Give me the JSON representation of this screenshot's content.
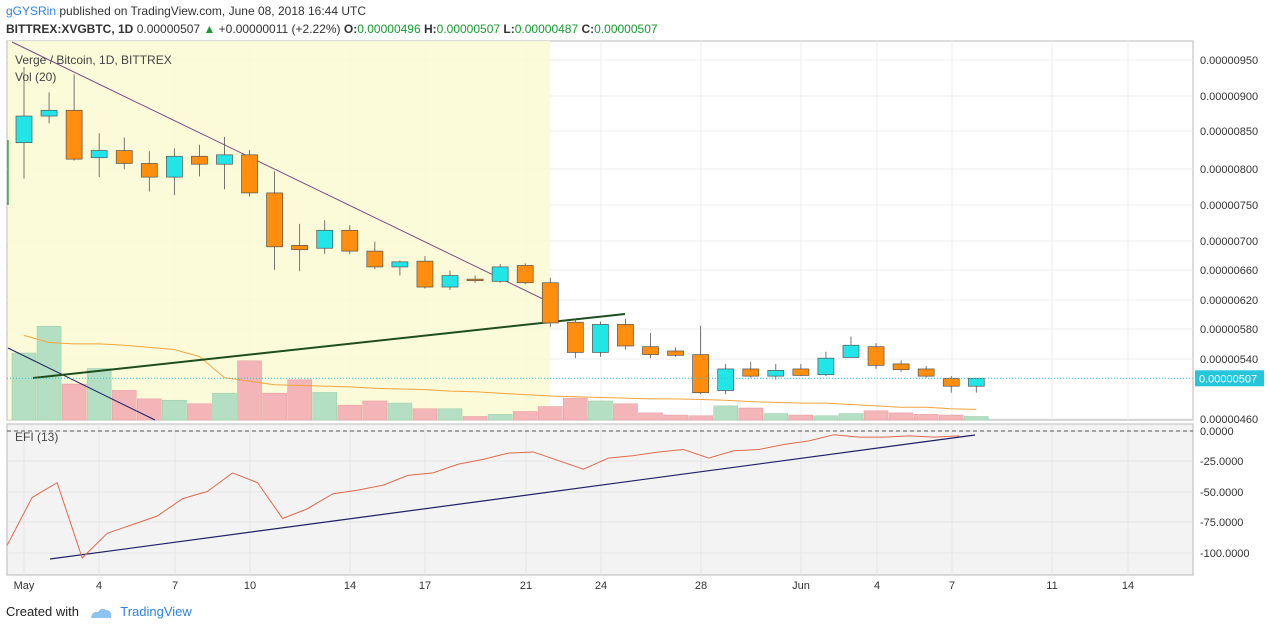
{
  "header": {
    "author": "gGYSRin",
    "published": "published on TradingView.com, June 08, 2018 16:44 UTC",
    "symbol_line": "BITTREX:XVGBTC, 1D",
    "last": "0.00000507",
    "change": "+0.00000011 (+2.22%)",
    "o_label": "O:",
    "o": "0.00000496",
    "h_label": "H:",
    "h": "0.00000507",
    "l_label": "L:",
    "l": "0.00000487",
    "c_label": "C:",
    "c": "0.00000507"
  },
  "footer": {
    "created_with": "Created with",
    "brand": "TradingView"
  },
  "colors": {
    "up": "#22e5e8",
    "down": "#ff8d0e",
    "vol_up": "#b4dfc3",
    "vol_down": "#f4b5b9",
    "efi": "#e06a4c",
    "trend": "#1f1f66",
    "green_line": "#1e4d1e",
    "vol_ma": "#f5a43c",
    "zone": "#fafad2",
    "price_line": "#26c6da"
  },
  "chart_data": [
    {
      "type": "candlestick",
      "title": "Verge / Bitcoin, 1D, BITTREX",
      "volume_label": "Vol (20)",
      "x_ticks": [
        "May",
        "4",
        "7",
        "10",
        "14",
        "17",
        "21",
        "24",
        "28",
        "Jun",
        "4",
        "7",
        "11",
        "14"
      ],
      "y_ticks": [
        "0.00000950",
        "0.00000900",
        "0.00000850",
        "0.00000800",
        "0.00000750",
        "0.00000700",
        "0.00000660",
        "0.00000620",
        "0.00000580",
        "0.00000540",
        "0.00000460"
      ],
      "last_price_label": "0.00000507",
      "candles": [
        {
          "o": 835,
          "h": 940,
          "l": 785,
          "c": 872
        },
        {
          "o": 872,
          "h": 905,
          "l": 862,
          "c": 880
        },
        {
          "o": 880,
          "h": 930,
          "l": 810,
          "c": 812
        },
        {
          "o": 814,
          "h": 848,
          "l": 787,
          "c": 824
        },
        {
          "o": 824,
          "h": 842,
          "l": 798,
          "c": 806
        },
        {
          "o": 806,
          "h": 823,
          "l": 767,
          "c": 787
        },
        {
          "o": 787,
          "h": 827,
          "l": 762,
          "c": 816
        },
        {
          "o": 816,
          "h": 832,
          "l": 788,
          "c": 805
        },
        {
          "o": 805,
          "h": 843,
          "l": 770,
          "c": 818
        },
        {
          "o": 818,
          "h": 825,
          "l": 760,
          "c": 765
        },
        {
          "o": 765,
          "h": 795,
          "l": 658,
          "c": 690
        },
        {
          "o": 692,
          "h": 722,
          "l": 656,
          "c": 686
        },
        {
          "o": 688,
          "h": 727,
          "l": 680,
          "c": 713
        },
        {
          "o": 713,
          "h": 720,
          "l": 680,
          "c": 684
        },
        {
          "o": 684,
          "h": 697,
          "l": 659,
          "c": 662
        },
        {
          "o": 662,
          "h": 671,
          "l": 650,
          "c": 669
        },
        {
          "o": 670,
          "h": 677,
          "l": 632,
          "c": 634
        },
        {
          "o": 634,
          "h": 657,
          "l": 630,
          "c": 650
        },
        {
          "o": 645,
          "h": 650,
          "l": 640,
          "c": 643
        },
        {
          "o": 642,
          "h": 666,
          "l": 640,
          "c": 662
        },
        {
          "o": 664,
          "h": 667,
          "l": 638,
          "c": 640
        },
        {
          "o": 640,
          "h": 647,
          "l": 578,
          "c": 584
        },
        {
          "o": 585,
          "h": 590,
          "l": 535,
          "c": 543
        },
        {
          "o": 543,
          "h": 586,
          "l": 537,
          "c": 582
        },
        {
          "o": 582,
          "h": 590,
          "l": 547,
          "c": 552
        },
        {
          "o": 551,
          "h": 570,
          "l": 535,
          "c": 540
        },
        {
          "o": 545,
          "h": 550,
          "l": 537,
          "c": 539
        },
        {
          "o": 540,
          "h": 580,
          "l": 485,
          "c": 487
        },
        {
          "o": 490,
          "h": 527,
          "l": 485,
          "c": 520
        },
        {
          "o": 520,
          "h": 530,
          "l": 508,
          "c": 510
        },
        {
          "o": 510,
          "h": 527,
          "l": 505,
          "c": 518
        },
        {
          "o": 520,
          "h": 527,
          "l": 510,
          "c": 511
        },
        {
          "o": 512,
          "h": 544,
          "l": 510,
          "c": 535
        },
        {
          "o": 536,
          "h": 565,
          "l": 536,
          "c": 553
        },
        {
          "o": 551,
          "h": 556,
          "l": 520,
          "c": 525
        },
        {
          "o": 527,
          "h": 532,
          "l": 516,
          "c": 519
        },
        {
          "o": 520,
          "h": 524,
          "l": 508,
          "c": 510
        },
        {
          "o": 507,
          "h": 510,
          "l": 487,
          "c": 496
        },
        {
          "o": 496,
          "h": 507,
          "l": 487,
          "c": 507
        }
      ],
      "volume": [
        95,
        133,
        51,
        73,
        42,
        30,
        28,
        23,
        38,
        84,
        38,
        57,
        39,
        21,
        27,
        24,
        16,
        16,
        5,
        8,
        12,
        19,
        31,
        27,
        23,
        10,
        7,
        6,
        20,
        17,
        9,
        7,
        6,
        9,
        13,
        10,
        8,
        7,
        5
      ],
      "volume_ma": [
        120,
        110,
        108,
        108,
        106,
        103,
        100,
        90,
        60,
        55,
        50,
        49,
        48,
        47,
        45,
        44,
        43,
        41,
        40,
        38,
        36,
        34,
        33,
        32,
        31,
        30,
        30,
        29,
        28,
        26,
        25,
        24,
        24,
        22,
        20,
        18,
        18,
        16,
        15
      ]
    },
    {
      "type": "line",
      "title": "EFI (13)",
      "y_ticks": [
        "0.0000",
        "-25.0000",
        "-50.0000",
        "-75.0000",
        "-100.0000"
      ],
      "values": [
        -93,
        -54,
        -42,
        -103,
        -83,
        -76,
        -69,
        -55,
        -49,
        -34,
        -42,
        -71,
        -63,
        -51,
        -48,
        -44,
        -36,
        -34,
        -27,
        -23,
        -18,
        -17,
        -24,
        -31,
        -22,
        -20,
        -17,
        -15,
        -22,
        -16,
        -15,
        -11,
        -8,
        -3,
        -5,
        -5,
        -4,
        -5,
        -4
      ]
    }
  ]
}
